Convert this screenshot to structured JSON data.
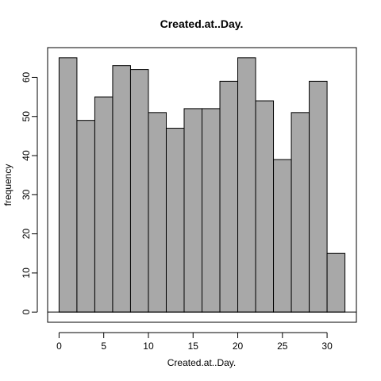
{
  "chart_data": {
    "type": "bar",
    "title": "Created.at..Day.",
    "xlabel": "Created.at..Day.",
    "ylabel": "frequency",
    "bins": [
      {
        "x0": 0,
        "x1": 2,
        "value": 65
      },
      {
        "x0": 2,
        "x1": 4,
        "value": 49
      },
      {
        "x0": 4,
        "x1": 6,
        "value": 55
      },
      {
        "x0": 6,
        "x1": 8,
        "value": 63
      },
      {
        "x0": 8,
        "x1": 10,
        "value": 62
      },
      {
        "x0": 10,
        "x1": 12,
        "value": 51
      },
      {
        "x0": 12,
        "x1": 14,
        "value": 47
      },
      {
        "x0": 14,
        "x1": 16,
        "value": 52
      },
      {
        "x0": 16,
        "x1": 18,
        "value": 52
      },
      {
        "x0": 18,
        "x1": 20,
        "value": 59
      },
      {
        "x0": 20,
        "x1": 22,
        "value": 65
      },
      {
        "x0": 22,
        "x1": 24,
        "value": 54
      },
      {
        "x0": 24,
        "x1": 26,
        "value": 39
      },
      {
        "x0": 26,
        "x1": 28,
        "value": 51
      },
      {
        "x0": 28,
        "x1": 30,
        "value": 59
      },
      {
        "x0": 30,
        "x1": 32,
        "value": 15
      }
    ],
    "x_ticks": [
      "0",
      "5",
      "10",
      "15",
      "20",
      "25",
      "30"
    ],
    "y_ticks": [
      "0",
      "10",
      "20",
      "30",
      "40",
      "50",
      "60"
    ],
    "xlim": [
      -1.28,
      33.28
    ],
    "ylim": [
      -2.6,
      67.6
    ],
    "bar_color": "#a8a8a8",
    "grid": false
  }
}
